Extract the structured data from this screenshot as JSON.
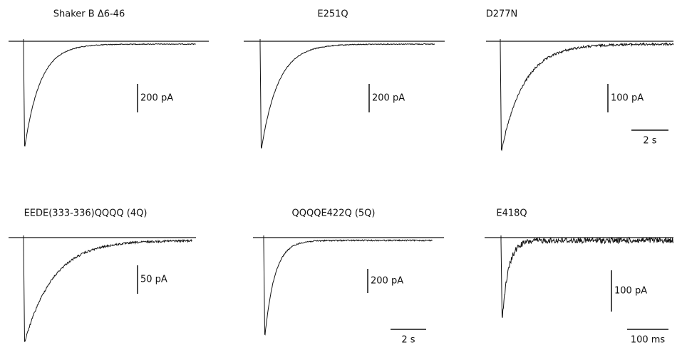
{
  "panels": [
    {
      "title": "Shaker B Δ6-46",
      "current_scale": "200 pA"
    },
    {
      "title": "E251Q",
      "current_scale": "200 pA"
    },
    {
      "title": "D277N",
      "current_scale": "100 pA",
      "time_scale": "2 s"
    },
    {
      "title": "EEDE(333-336)QQQQ (4Q)",
      "current_scale": "50 pA"
    },
    {
      "title": "QQQQE422Q (5Q)",
      "current_scale": "200 pA",
      "time_scale": "2 s"
    },
    {
      "title": "E418Q",
      "current_scale": "100 pA",
      "time_scale": "100 ms"
    }
  ]
}
